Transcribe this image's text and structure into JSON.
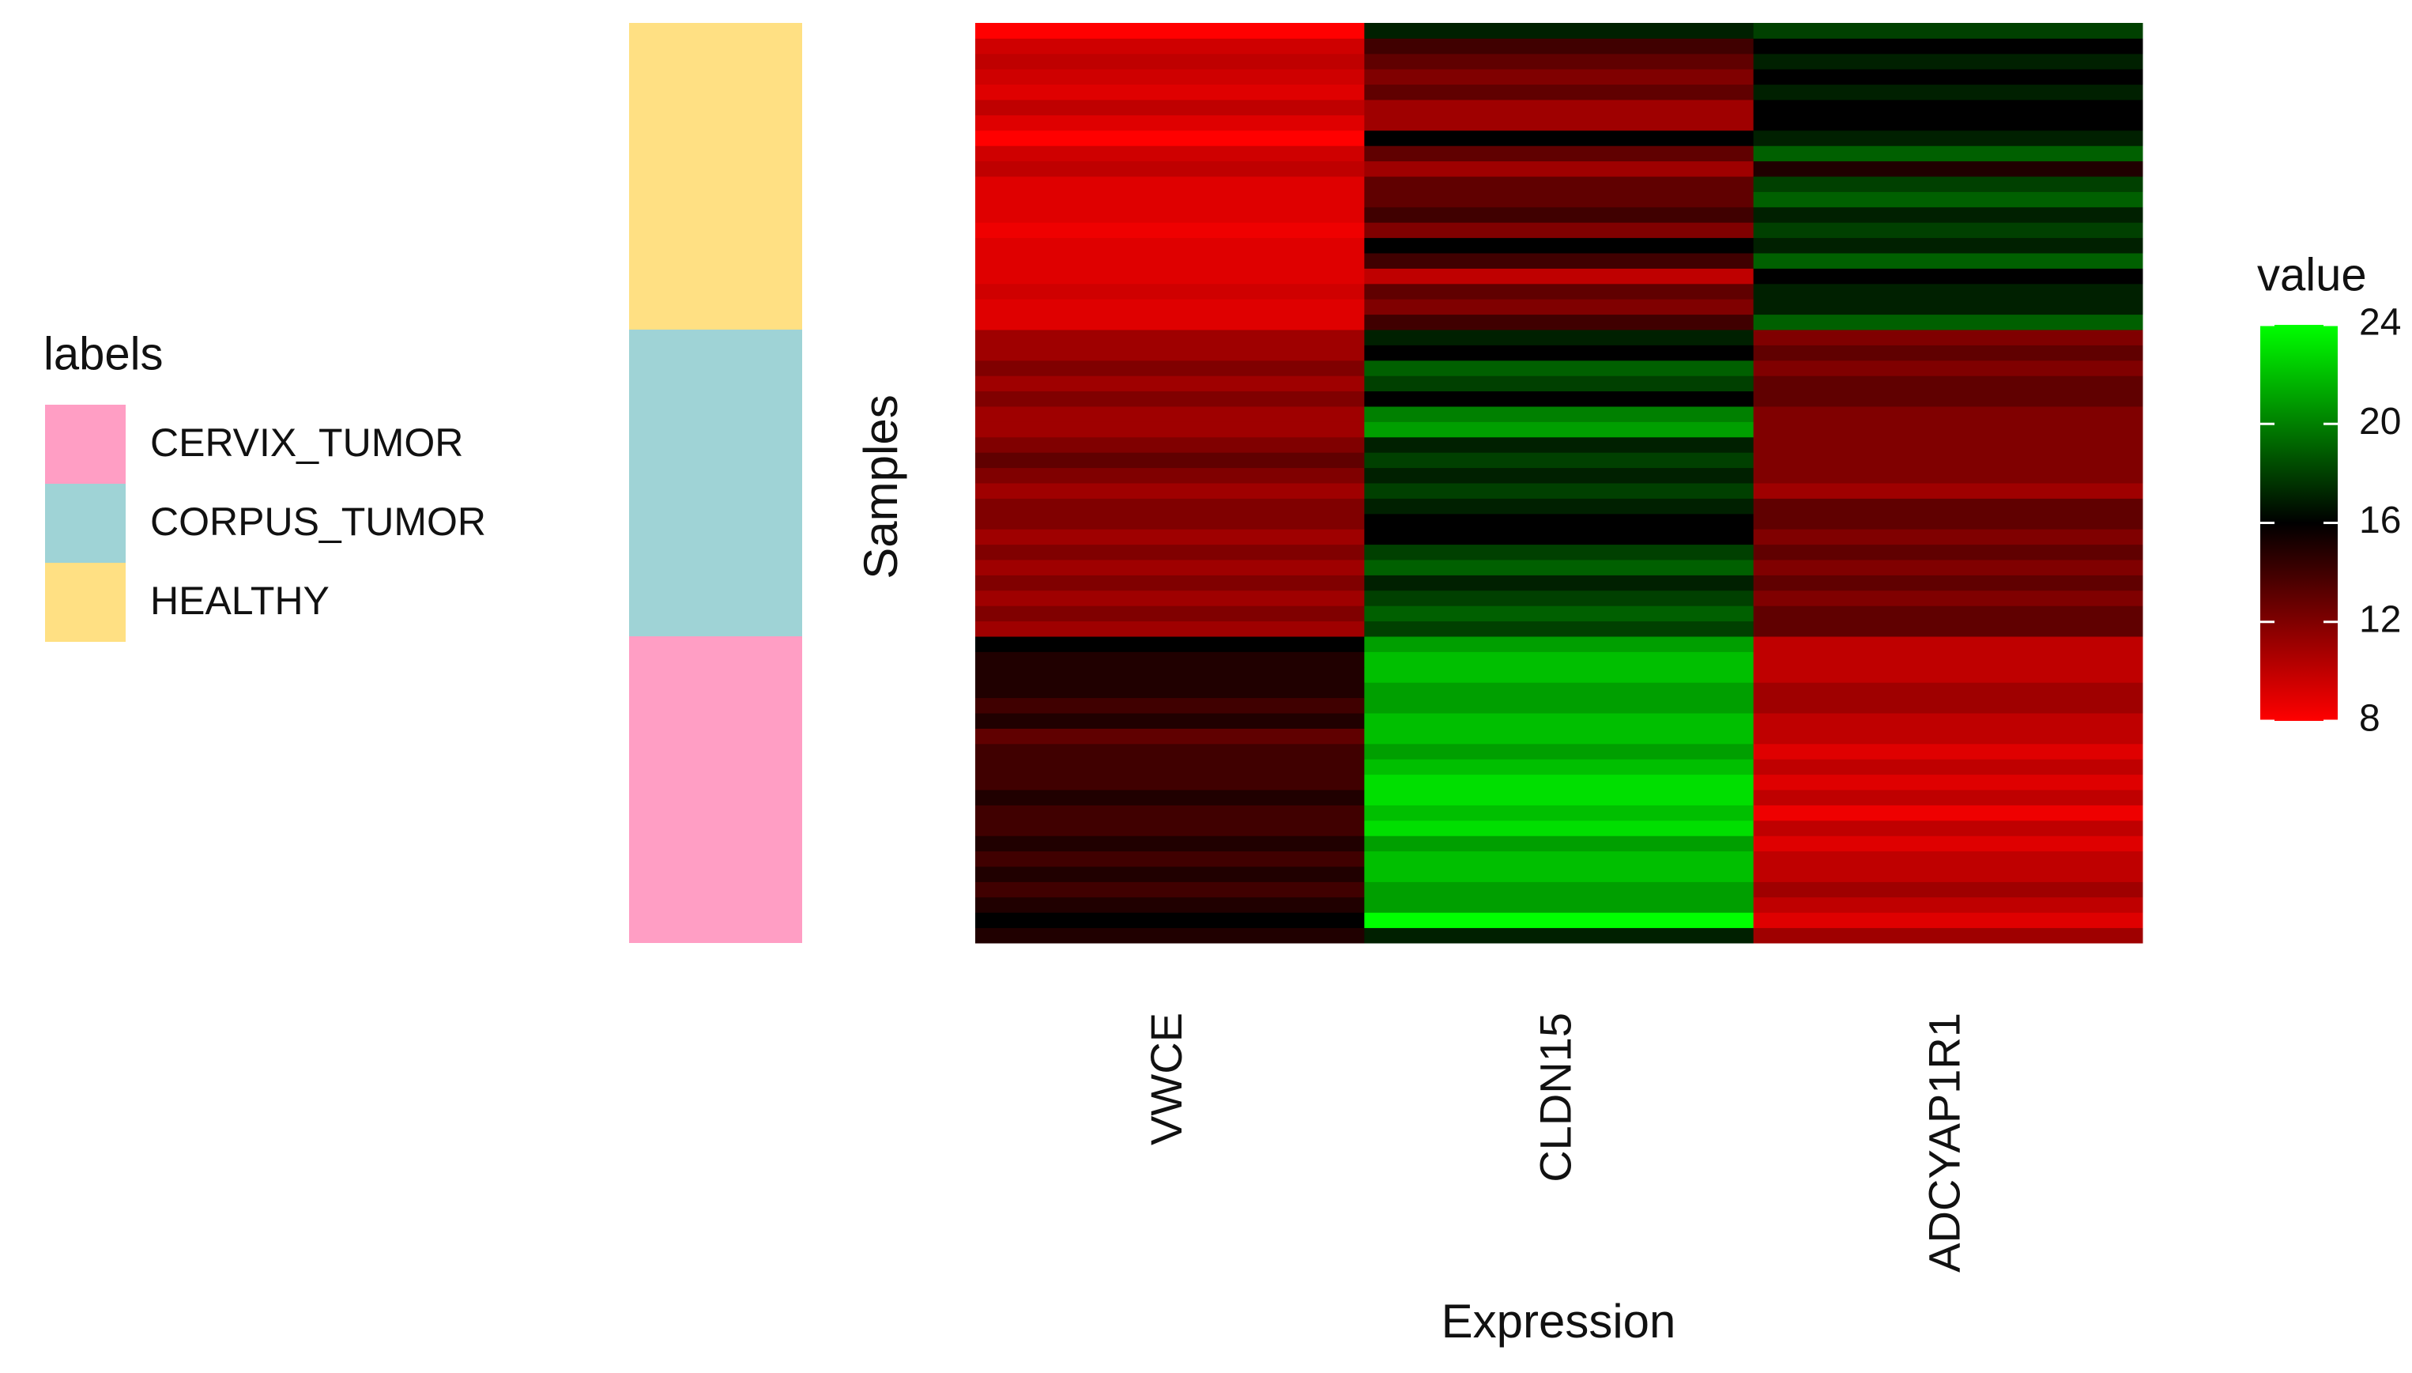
{
  "chart_data": {
    "type": "heatmap",
    "x_label": "Expression",
    "y_label": "Samples",
    "categories": [
      "VWCE",
      "CLDN15",
      "ADCYAP1R1"
    ],
    "values": [
      [
        15,
        17,
        11
      ],
      [
        16,
        24,
        9
      ],
      [
        15,
        21,
        10
      ],
      [
        14,
        21,
        11
      ],
      [
        15,
        22,
        10
      ],
      [
        14,
        22,
        10
      ],
      [
        15,
        21,
        9
      ],
      [
        14,
        23,
        10
      ],
      [
        14,
        22,
        8.5
      ],
      [
        15,
        23,
        10
      ],
      [
        14,
        23,
        9
      ],
      [
        14,
        22,
        10
      ],
      [
        14,
        21,
        9
      ],
      [
        13,
        22,
        10
      ],
      [
        15,
        22,
        10
      ],
      [
        14,
        21,
        11
      ],
      [
        15,
        21,
        11
      ],
      [
        15,
        22,
        10
      ],
      [
        15,
        22,
        10
      ],
      [
        16,
        21,
        10
      ],
      [
        11,
        18,
        13
      ],
      [
        12,
        19,
        13
      ],
      [
        11,
        18,
        12
      ],
      [
        12,
        17,
        13
      ],
      [
        11,
        19,
        12
      ],
      [
        12,
        18,
        13
      ],
      [
        11,
        16,
        12
      ],
      [
        12,
        16,
        13
      ],
      [
        12,
        17,
        13
      ],
      [
        11,
        18,
        11
      ],
      [
        12,
        17,
        12
      ],
      [
        13,
        18,
        12
      ],
      [
        12,
        17,
        12
      ],
      [
        11,
        21,
        12
      ],
      [
        11,
        20,
        12
      ],
      [
        12,
        16,
        13
      ],
      [
        11,
        18,
        13
      ],
      [
        12,
        19,
        12
      ],
      [
        11,
        16,
        13
      ],
      [
        11,
        17,
        12
      ],
      [
        9,
        14,
        19
      ],
      [
        9,
        12,
        17
      ],
      [
        9.5,
        13,
        17
      ],
      [
        9,
        10,
        16
      ],
      [
        9,
        14,
        19
      ],
      [
        9,
        16,
        17
      ],
      [
        8.5,
        12,
        18
      ],
      [
        9,
        14,
        17
      ],
      [
        9,
        13,
        19
      ],
      [
        9,
        13,
        18
      ],
      [
        10,
        11,
        15
      ],
      [
        9.5,
        13,
        19
      ],
      [
        8,
        16,
        17
      ],
      [
        9,
        11,
        16
      ],
      [
        10,
        11,
        16
      ],
      [
        9,
        13,
        17
      ],
      [
        9.5,
        12,
        16
      ],
      [
        10,
        13,
        17
      ],
      [
        9.5,
        14,
        16
      ],
      [
        8,
        17,
        18
      ]
    ],
    "annotation": {
      "title": "labels",
      "groups": [
        {
          "name": "CERVIX_TUMOR",
          "color": "#ff9ec4",
          "count": 20
        },
        {
          "name": "CORPUS_TUMOR",
          "color": "#9fd3d6",
          "count": 20
        },
        {
          "name": "HEALTHY",
          "color": "#ffe083",
          "count": 20
        }
      ]
    },
    "colorbar": {
      "title": "value",
      "lim": [
        8,
        24
      ],
      "midpoint": 16,
      "ticks": [
        8,
        12,
        16,
        20,
        24
      ],
      "colors": [
        "#ff0000",
        "#000000",
        "#00ff00"
      ]
    }
  }
}
